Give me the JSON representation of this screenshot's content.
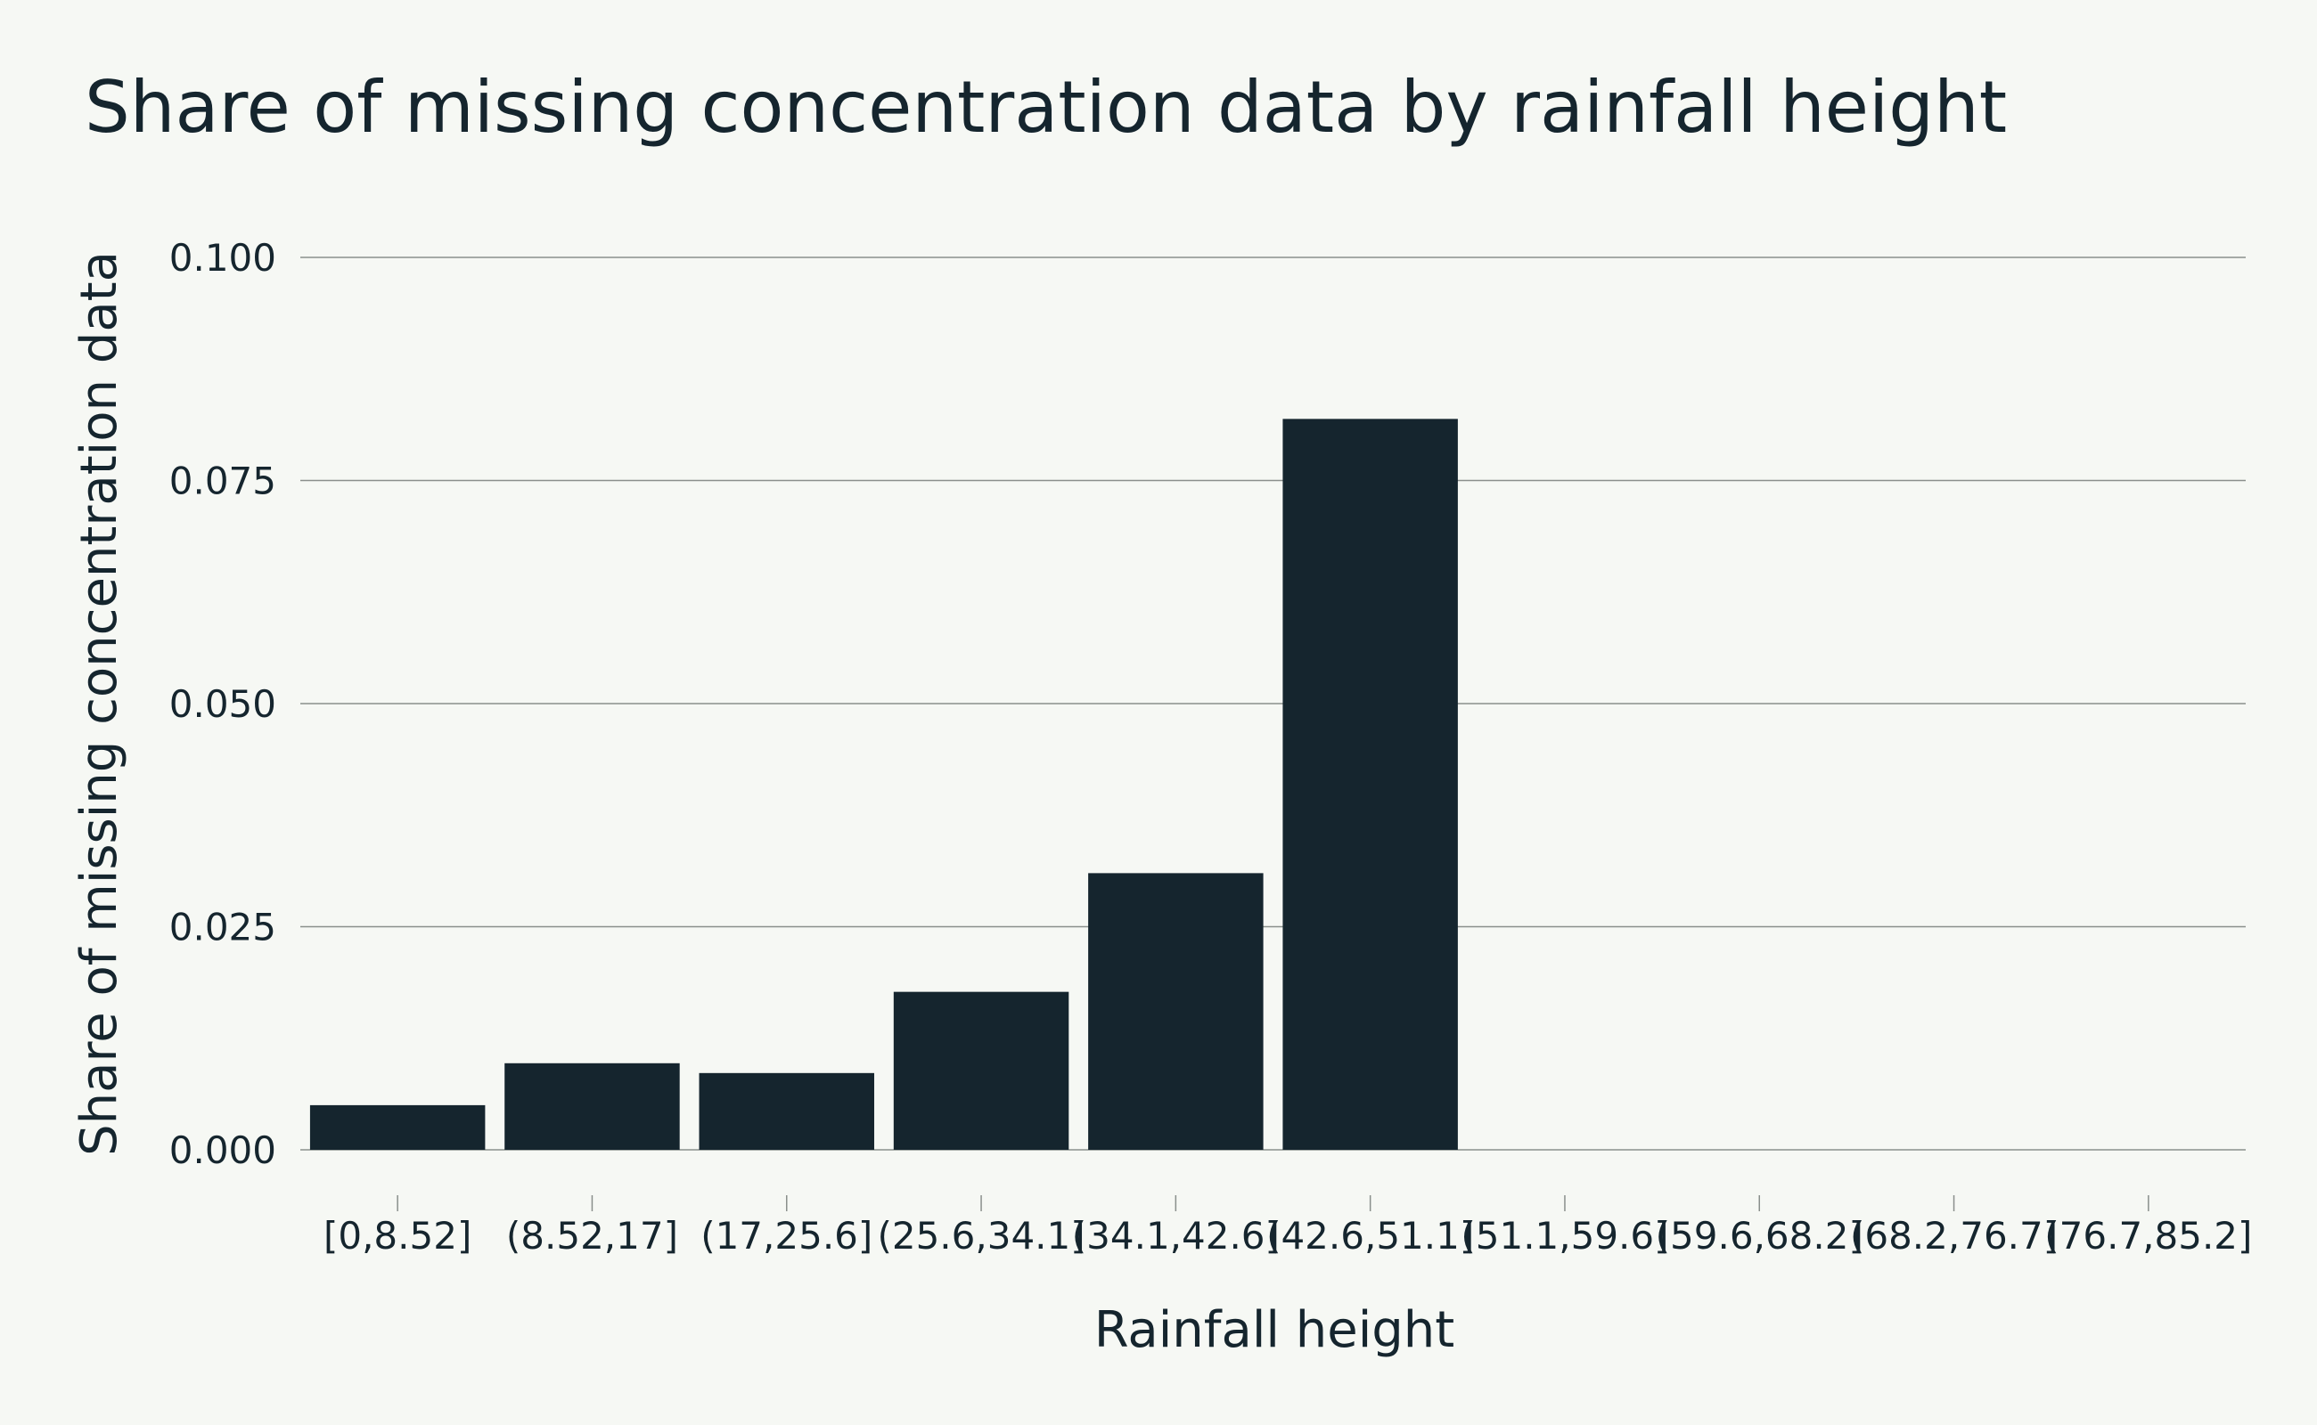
{
  "colors": {
    "background": "#f6f8f4",
    "bar": "#15252e",
    "text": "#15252e",
    "grid": "#8a8f8c"
  },
  "chart_data": {
    "type": "bar",
    "title": "Share of missing concentration data by rainfall height",
    "xlabel": "Rainfall height",
    "ylabel": "Share of missing concentration data",
    "categories": [
      "[0,8.52]",
      "(8.52,17]",
      "(17,25.6]",
      "(25.6,34.1]",
      "(34.1,42.6]",
      "(42.6,51.1]",
      "(51.1,59.6]",
      "(59.6,68.2]",
      "(68.2,76.7]",
      "(76.7,85.2]"
    ],
    "values": [
      0.005,
      0.0097,
      0.0086,
      0.0177,
      0.031,
      0.0819,
      0,
      0,
      0,
      0
    ],
    "yticks": [
      0,
      0.025,
      0.05,
      0.075,
      0.1
    ],
    "ytick_labels": [
      "0.000",
      "0.025",
      "0.050",
      "0.075",
      "0.100"
    ],
    "ylim": [
      0,
      0.1
    ],
    "grid": true,
    "legend": "none"
  }
}
